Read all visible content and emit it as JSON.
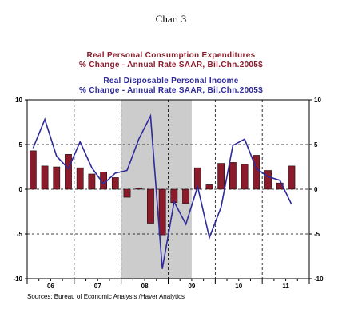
{
  "title": "Chart 3",
  "subtitle_lines": [
    "Real Personal Consumption Expenditures",
    "% Change - Annual Rate    SAAR, Bil.Chn.2005$",
    "Real Disposable Personal Income",
    "% Change - Annual Rate    SAAR, Bil.Chn.2005$"
  ],
  "source": "Sources:  Bureau of Economic Analysis /Haver Analytics",
  "colors": {
    "bars": "#8b1a2b",
    "line": "#2e2a9a",
    "recession": "#cccccc"
  },
  "chart_data": {
    "type": "bar",
    "quarters": [
      "2006Q1",
      "2006Q2",
      "2006Q3",
      "2006Q4",
      "2007Q1",
      "2007Q2",
      "2007Q3",
      "2007Q4",
      "2008Q1",
      "2008Q2",
      "2008Q3",
      "2008Q4",
      "2009Q1",
      "2009Q2",
      "2009Q3",
      "2009Q4",
      "2010Q1",
      "2010Q2",
      "2010Q3",
      "2010Q4",
      "2011Q1",
      "2011Q2",
      "2011Q3"
    ],
    "x_tick_labels": [
      "06",
      "07",
      "08",
      "09",
      "10",
      "11"
    ],
    "y_ticks": [
      10,
      5,
      0,
      -5,
      -10
    ],
    "ylim": [
      -10,
      10
    ],
    "recession_shading": {
      "start": "2008Q1",
      "end": "2009Q2"
    },
    "grid": "dashed at y=5, 0, -5 and at year boundaries",
    "series": [
      {
        "type": "bar",
        "values": [
          4.3,
          2.6,
          2.5,
          3.9,
          2.4,
          1.7,
          1.9,
          1.3,
          -0.9,
          0.1,
          -3.8,
          -5.1,
          -1.5,
          -1.6,
          2.4,
          0.5,
          2.9,
          3.0,
          2.8,
          3.8,
          2.1,
          0.7,
          2.6
        ]
      },
      {
        "type": "line",
        "values": [
          4.6,
          7.8,
          3.7,
          2.3,
          5.3,
          2.4,
          0.6,
          1.8,
          2.1,
          5.6,
          8.2,
          -8.9,
          -1.4,
          -3.9,
          0.3,
          -5.4,
          -2.0,
          4.9,
          5.6,
          2.3,
          1.4,
          1.0,
          -1.7
        ]
      }
    ]
  }
}
